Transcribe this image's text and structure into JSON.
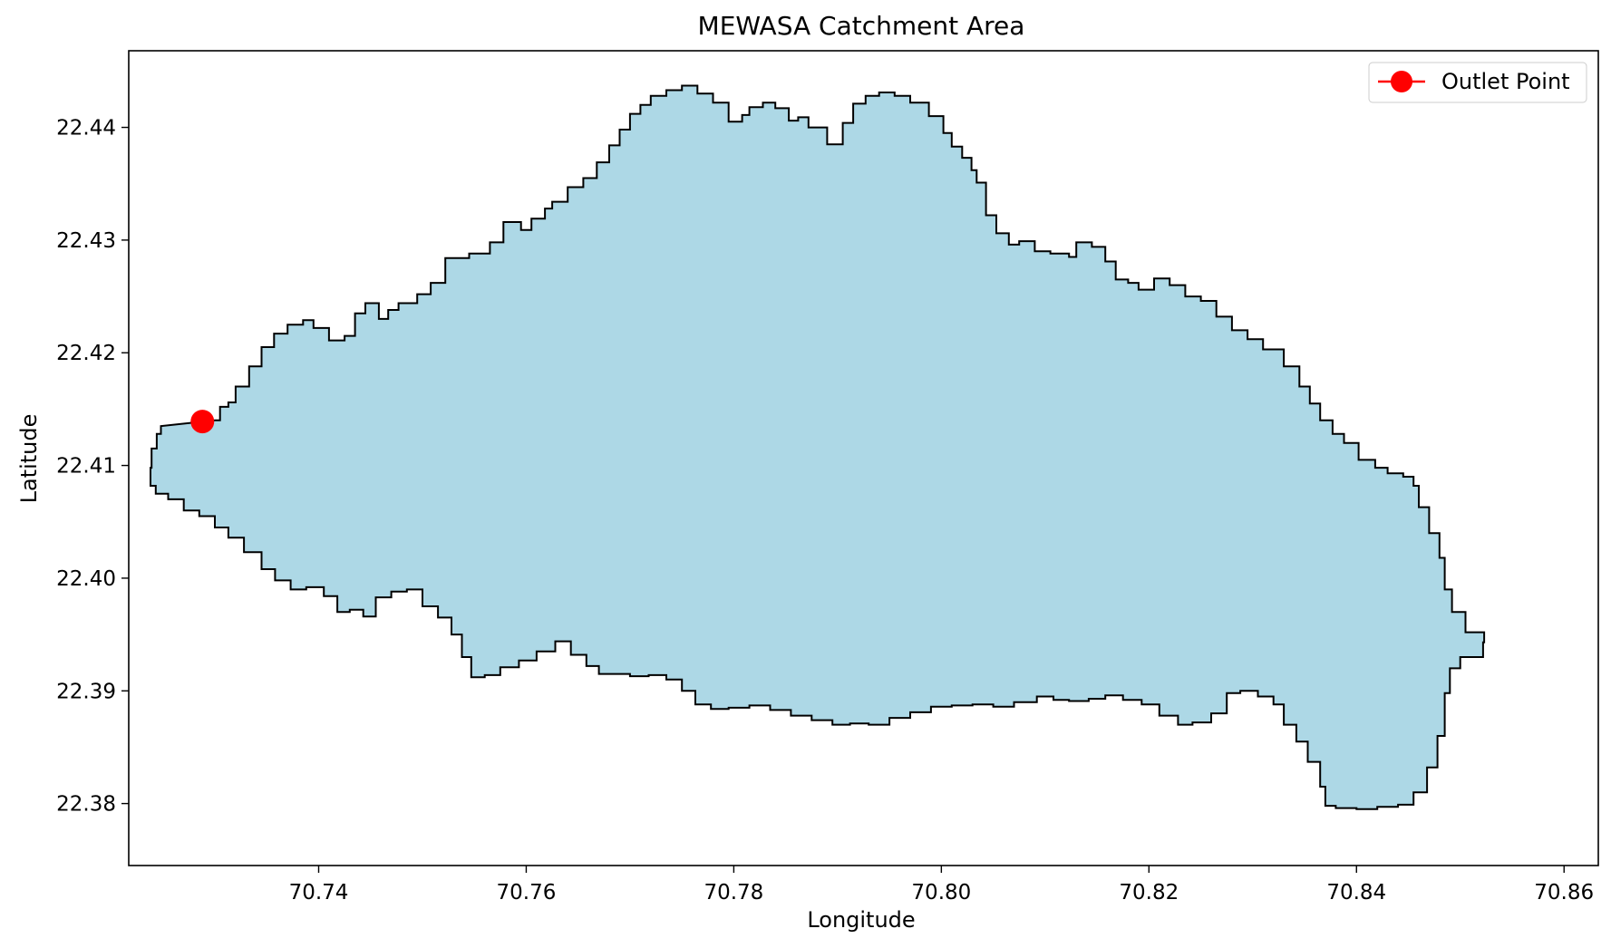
{
  "chart_data": {
    "type": "map",
    "title": "MEWASA Catchment Area",
    "xlabel": "Longitude",
    "ylabel": "Latitude",
    "xlim": [
      70.7217,
      70.8633
    ],
    "ylim": [
      22.3745,
      22.4468
    ],
    "x_ticks": [
      {
        "value": 70.74,
        "label": "70.74"
      },
      {
        "value": 70.76,
        "label": "70.76"
      },
      {
        "value": 70.78,
        "label": "70.78"
      },
      {
        "value": 70.8,
        "label": "70.80"
      },
      {
        "value": 70.82,
        "label": "70.82"
      },
      {
        "value": 70.84,
        "label": "70.84"
      },
      {
        "value": 70.86,
        "label": "70.86"
      }
    ],
    "y_ticks": [
      {
        "value": 22.38,
        "label": "22.38"
      },
      {
        "value": 22.39,
        "label": "22.39"
      },
      {
        "value": 22.4,
        "label": "22.40"
      },
      {
        "value": 22.41,
        "label": "22.41"
      },
      {
        "value": 22.42,
        "label": "22.42"
      },
      {
        "value": 22.43,
        "label": "22.43"
      },
      {
        "value": 22.44,
        "label": "22.44"
      }
    ],
    "catchment": {
      "fill": "#add8e6",
      "edge": "#000000",
      "boundary": [
        [
          70.73,
          22.414
        ],
        [
          70.7305,
          22.4152
        ],
        [
          70.7313,
          22.4156
        ],
        [
          70.732,
          22.417
        ],
        [
          70.7333,
          22.4188
        ],
        [
          70.7345,
          22.4205
        ],
        [
          70.7357,
          22.4217
        ],
        [
          70.737,
          22.4225
        ],
        [
          70.7385,
          22.4229
        ],
        [
          70.7395,
          22.4222
        ],
        [
          70.741,
          22.4211
        ],
        [
          70.7425,
          22.4215
        ],
        [
          70.7435,
          22.4235
        ],
        [
          70.7445,
          22.4244
        ],
        [
          70.7458,
          22.423
        ],
        [
          70.7467,
          22.4238
        ],
        [
          70.7477,
          22.4244
        ],
        [
          70.7495,
          22.4252
        ],
        [
          70.7508,
          22.4262
        ],
        [
          70.7522,
          22.4284
        ],
        [
          70.7545,
          22.4288
        ],
        [
          70.7565,
          22.4298
        ],
        [
          70.7578,
          22.4316
        ],
        [
          70.7595,
          22.4309
        ],
        [
          70.7605,
          22.4319
        ],
        [
          70.7618,
          22.4328
        ],
        [
          70.7625,
          22.4334
        ],
        [
          70.764,
          22.4347
        ],
        [
          70.7655,
          22.4355
        ],
        [
          70.7668,
          22.4369
        ],
        [
          70.768,
          22.4384
        ],
        [
          70.769,
          22.4398
        ],
        [
          70.77,
          22.4412
        ],
        [
          70.771,
          22.442
        ],
        [
          70.772,
          22.4428
        ],
        [
          70.7735,
          22.4433
        ],
        [
          70.775,
          22.4437
        ],
        [
          70.7765,
          22.443
        ],
        [
          70.778,
          22.4422
        ],
        [
          70.7795,
          22.4405
        ],
        [
          70.7808,
          22.4411
        ],
        [
          70.7815,
          22.4418
        ],
        [
          70.7828,
          22.4422
        ],
        [
          70.784,
          22.4417
        ],
        [
          70.7853,
          22.4406
        ],
        [
          70.7862,
          22.4409
        ],
        [
          70.7872,
          22.44
        ],
        [
          70.789,
          22.4385
        ],
        [
          70.7905,
          22.4404
        ],
        [
          70.7915,
          22.4421
        ],
        [
          70.7927,
          22.4428
        ],
        [
          70.794,
          22.4431
        ],
        [
          70.7955,
          22.4428
        ],
        [
          70.797,
          22.4422
        ],
        [
          70.7988,
          22.441
        ],
        [
          70.8002,
          22.4395
        ],
        [
          70.801,
          22.4383
        ],
        [
          70.802,
          22.4373
        ],
        [
          70.8029,
          22.4362
        ],
        [
          70.8034,
          22.4351
        ],
        [
          70.8043,
          22.4322
        ],
        [
          70.8053,
          22.4306
        ],
        [
          70.8065,
          22.4296
        ],
        [
          70.8075,
          22.4299
        ],
        [
          70.809,
          22.429
        ],
        [
          70.8105,
          22.4288
        ],
        [
          70.8123,
          22.4285
        ],
        [
          70.813,
          22.4298
        ],
        [
          70.8145,
          22.4294
        ],
        [
          70.8158,
          22.4281
        ],
        [
          70.8168,
          22.4265
        ],
        [
          70.818,
          22.4262
        ],
        [
          70.819,
          22.4256
        ],
        [
          70.8205,
          22.4266
        ],
        [
          70.822,
          22.426
        ],
        [
          70.8235,
          22.425
        ],
        [
          70.825,
          22.4246
        ],
        [
          70.8265,
          22.4232
        ],
        [
          70.828,
          22.422
        ],
        [
          70.8295,
          22.4212
        ],
        [
          70.831,
          22.4203
        ],
        [
          70.833,
          22.4188
        ],
        [
          70.8345,
          22.417
        ],
        [
          70.8355,
          22.4155
        ],
        [
          70.8365,
          22.414
        ],
        [
          70.8377,
          22.4128
        ],
        [
          70.8388,
          22.412
        ],
        [
          70.8402,
          22.4105
        ],
        [
          70.8418,
          22.4098
        ],
        [
          70.843,
          22.4093
        ],
        [
          70.8445,
          22.409
        ],
        [
          70.8455,
          22.4082
        ],
        [
          70.846,
          22.4063
        ],
        [
          70.847,
          22.404
        ],
        [
          70.848,
          22.4018
        ],
        [
          70.8485,
          22.399
        ],
        [
          70.8492,
          22.397
        ],
        [
          70.8505,
          22.3952
        ],
        [
          70.8523,
          22.3943
        ],
        [
          70.8522,
          22.393
        ],
        [
          70.85,
          22.392
        ],
        [
          70.849,
          22.3898
        ],
        [
          70.8485,
          22.386
        ],
        [
          70.8478,
          22.3832
        ],
        [
          70.8468,
          22.381
        ],
        [
          70.8455,
          22.3799
        ],
        [
          70.844,
          22.3797
        ],
        [
          70.842,
          22.3795
        ],
        [
          70.84,
          22.3796
        ],
        [
          70.838,
          22.3798
        ],
        [
          70.837,
          22.3815
        ],
        [
          70.8365,
          22.3837
        ],
        [
          70.8353,
          22.3855
        ],
        [
          70.8342,
          22.387
        ],
        [
          70.833,
          22.3888
        ],
        [
          70.832,
          22.3895
        ],
        [
          70.8305,
          22.39
        ],
        [
          70.8288,
          22.3898
        ],
        [
          70.8275,
          22.388
        ],
        [
          70.826,
          22.3872
        ],
        [
          70.8242,
          22.387
        ],
        [
          70.8228,
          22.3878
        ],
        [
          70.821,
          22.3888
        ],
        [
          70.8193,
          22.3892
        ],
        [
          70.8175,
          22.3896
        ],
        [
          70.8158,
          22.3893
        ],
        [
          70.8142,
          22.3891
        ],
        [
          70.8123,
          22.3892
        ],
        [
          70.8108,
          22.3895
        ],
        [
          70.8092,
          22.389
        ],
        [
          70.807,
          22.3886
        ],
        [
          70.805,
          22.3888
        ],
        [
          70.803,
          22.3887
        ],
        [
          70.801,
          22.3886
        ],
        [
          70.799,
          22.3881
        ],
        [
          70.797,
          22.3876
        ],
        [
          70.795,
          22.387
        ],
        [
          70.793,
          22.3871
        ],
        [
          70.7912,
          22.387
        ],
        [
          70.7895,
          22.3874
        ],
        [
          70.7875,
          22.3878
        ],
        [
          70.7855,
          22.3883
        ],
        [
          70.7835,
          22.3887
        ],
        [
          70.7815,
          22.3885
        ],
        [
          70.7795,
          22.3884
        ],
        [
          70.7778,
          22.3888
        ],
        [
          70.7763,
          22.39
        ],
        [
          70.775,
          22.391
        ],
        [
          70.7735,
          22.3914
        ],
        [
          70.7718,
          22.3913
        ],
        [
          70.77,
          22.3915
        ],
        [
          70.7685,
          22.3915
        ],
        [
          70.767,
          22.3922
        ],
        [
          70.7658,
          22.3932
        ],
        [
          70.7643,
          22.3944
        ],
        [
          70.7628,
          22.3935
        ],
        [
          70.761,
          22.3927
        ],
        [
          70.7593,
          22.3921
        ],
        [
          70.7575,
          22.3914
        ],
        [
          70.756,
          22.3912
        ],
        [
          70.7547,
          22.393
        ],
        [
          70.7538,
          22.395
        ],
        [
          70.7528,
          22.3965
        ],
        [
          70.7515,
          22.3975
        ],
        [
          70.75,
          22.399
        ],
        [
          70.7485,
          22.3988
        ],
        [
          70.747,
          22.3983
        ],
        [
          70.7455,
          22.3966
        ],
        [
          70.7443,
          22.3972
        ],
        [
          70.743,
          22.397
        ],
        [
          70.7418,
          22.3984
        ],
        [
          70.7405,
          22.3992
        ],
        [
          70.7388,
          22.399
        ],
        [
          70.7373,
          22.3998
        ],
        [
          70.7358,
          22.4008
        ],
        [
          70.7345,
          22.4023
        ],
        [
          70.7328,
          22.4036
        ],
        [
          70.7313,
          22.4045
        ],
        [
          70.73,
          22.4055
        ],
        [
          70.7285,
          22.406
        ],
        [
          70.727,
          22.407
        ],
        [
          70.7255,
          22.4075
        ],
        [
          70.7243,
          22.4082
        ],
        [
          70.7238,
          22.4098
        ],
        [
          70.7239,
          22.4115
        ],
        [
          70.7244,
          22.4128
        ],
        [
          70.7248,
          22.4135
        ]
      ]
    },
    "series": [
      {
        "name": "Outlet Point",
        "type": "marker",
        "color": "#ff0000",
        "x": [
          70.7288
        ],
        "y": [
          22.4139
        ]
      }
    ],
    "legend": {
      "placement": "top-right",
      "entries": [
        "Outlet Point"
      ]
    }
  }
}
